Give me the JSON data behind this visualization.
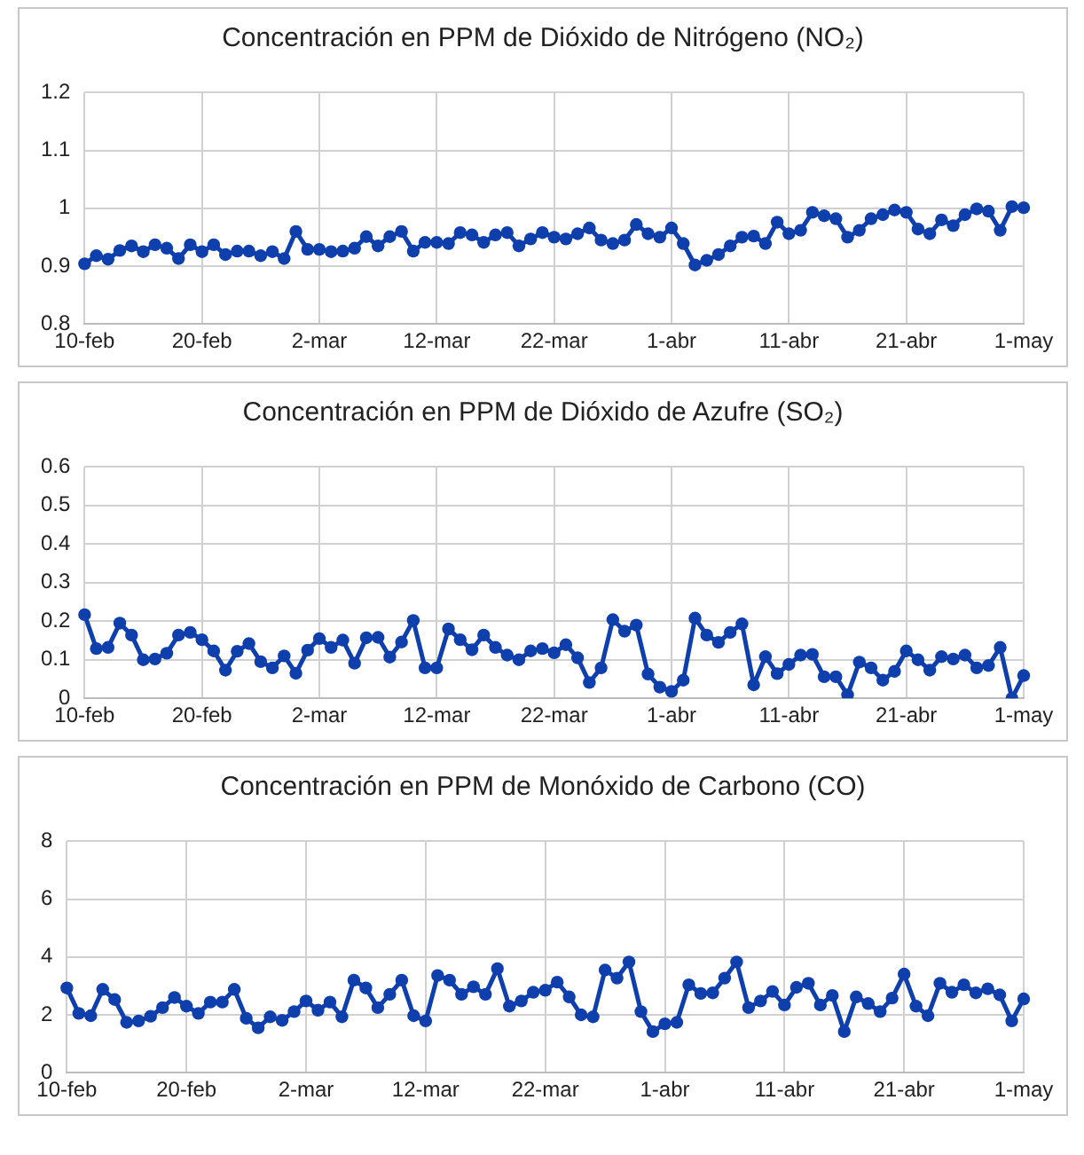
{
  "chart_data": [
    {
      "type": "line",
      "title": "Concentración en PPM de Dióxido de Nitrógeno (NO₂)",
      "marker": "circle",
      "grid": true,
      "color": "#0f3fad",
      "categories": [
        "10-feb",
        null,
        null,
        null,
        null,
        null,
        null,
        null,
        null,
        null,
        "20-feb",
        null,
        null,
        null,
        null,
        null,
        null,
        null,
        null,
        null,
        "2-mar",
        null,
        null,
        null,
        null,
        null,
        null,
        null,
        null,
        null,
        "12-mar",
        null,
        null,
        null,
        null,
        null,
        null,
        null,
        null,
        null,
        "22-mar",
        null,
        null,
        null,
        null,
        null,
        null,
        null,
        null,
        null,
        "1-abr",
        null,
        null,
        null,
        null,
        null,
        null,
        null,
        null,
        null,
        "11-abr",
        null,
        null,
        null,
        null,
        null,
        null,
        null,
        null,
        null,
        "21-abr",
        null,
        null,
        null,
        null,
        null,
        null,
        null,
        null,
        null,
        "1-may"
      ],
      "values": [
        0.904,
        0.918,
        0.912,
        0.927,
        0.935,
        0.925,
        0.937,
        0.931,
        0.913,
        0.937,
        0.925,
        0.937,
        0.92,
        0.926,
        0.926,
        0.918,
        0.925,
        0.913,
        0.96,
        0.929,
        0.929,
        0.925,
        0.926,
        0.931,
        0.951,
        0.935,
        0.951,
        0.96,
        0.926,
        0.941,
        0.941,
        0.939,
        0.958,
        0.954,
        0.941,
        0.954,
        0.958,
        0.935,
        0.947,
        0.958,
        0.95,
        0.947,
        0.956,
        0.966,
        0.945,
        0.939,
        0.945,
        0.972,
        0.956,
        0.95,
        0.966,
        0.939,
        0.902,
        0.91,
        0.92,
        0.935,
        0.95,
        0.952,
        0.939,
        0.976,
        0.956,
        0.962,
        0.993,
        0.987,
        0.982,
        0.95,
        0.962,
        0.982,
        0.989,
        0.997,
        0.993,
        0.964,
        0.956,
        0.98,
        0.97,
        0.989,
        0.999,
        0.995,
        0.962,
        1.003,
        1.001
      ],
      "ylim": [
        0.8,
        1.2
      ],
      "yticks": [
        0.8,
        0.9,
        1,
        1.1,
        1.2
      ]
    },
    {
      "type": "line",
      "title": "Concentración en PPM de Dióxido de Azufre (SO₂)",
      "marker": "circle",
      "grid": true,
      "color": "#0f3fad",
      "categories": [
        "10-feb",
        null,
        null,
        null,
        null,
        null,
        null,
        null,
        null,
        null,
        "20-feb",
        null,
        null,
        null,
        null,
        null,
        null,
        null,
        null,
        null,
        "2-mar",
        null,
        null,
        null,
        null,
        null,
        null,
        null,
        null,
        null,
        "12-mar",
        null,
        null,
        null,
        null,
        null,
        null,
        null,
        null,
        null,
        "22-mar",
        null,
        null,
        null,
        null,
        null,
        null,
        null,
        null,
        null,
        "1-abr",
        null,
        null,
        null,
        null,
        null,
        null,
        null,
        null,
        null,
        "11-abr",
        null,
        null,
        null,
        null,
        null,
        null,
        null,
        null,
        null,
        "21-abr",
        null,
        null,
        null,
        null,
        null,
        null,
        null,
        null,
        null,
        "1-may"
      ],
      "values": [
        0.217,
        0.129,
        0.132,
        0.195,
        0.164,
        0.1,
        0.102,
        0.117,
        0.164,
        0.171,
        0.152,
        0.123,
        0.073,
        0.122,
        0.142,
        0.095,
        0.079,
        0.11,
        0.065,
        0.125,
        0.155,
        0.132,
        0.151,
        0.091,
        0.157,
        0.158,
        0.107,
        0.146,
        0.202,
        0.079,
        0.079,
        0.18,
        0.152,
        0.126,
        0.164,
        0.132,
        0.112,
        0.1,
        0.123,
        0.129,
        0.118,
        0.139,
        0.105,
        0.041,
        0.079,
        0.204,
        0.174,
        0.19,
        0.063,
        0.029,
        0.018,
        0.047,
        0.208,
        0.164,
        0.145,
        0.171,
        0.193,
        0.035,
        0.108,
        0.064,
        0.088,
        0.112,
        0.114,
        0.056,
        0.056,
        0.009,
        0.094,
        0.079,
        0.047,
        0.07,
        0.123,
        0.1,
        0.073,
        0.108,
        0.102,
        0.112,
        0.079,
        0.085,
        0.132,
        0,
        0.059
      ],
      "ylim": [
        0,
        0.6
      ],
      "yticks": [
        0,
        0.1,
        0.2,
        0.3,
        0.4,
        0.5,
        0.6
      ]
    },
    {
      "type": "line",
      "title": "Concentración en PPM de Monóxido de Carbono (CO)",
      "marker": "circle",
      "grid": true,
      "color": "#0f3fad",
      "categories": [
        "10-feb",
        null,
        null,
        null,
        null,
        null,
        null,
        null,
        null,
        null,
        "20-feb",
        null,
        null,
        null,
        null,
        null,
        null,
        null,
        null,
        null,
        "2-mar",
        null,
        null,
        null,
        null,
        null,
        null,
        null,
        null,
        null,
        "12-mar",
        null,
        null,
        null,
        null,
        null,
        null,
        null,
        null,
        null,
        "22-mar",
        null,
        null,
        null,
        null,
        null,
        null,
        null,
        null,
        null,
        "1-abr",
        null,
        null,
        null,
        null,
        null,
        null,
        null,
        null,
        null,
        "11-abr",
        null,
        null,
        null,
        null,
        null,
        null,
        null,
        null,
        null,
        "21-abr",
        null,
        null,
        null,
        null,
        null,
        null,
        null,
        null,
        null,
        "1-may"
      ],
      "values": [
        2.93,
        2.05,
        1.97,
        2.88,
        2.53,
        1.74,
        1.79,
        1.95,
        2.25,
        2.6,
        2.3,
        2.05,
        2.44,
        2.44,
        2.88,
        1.88,
        1.55,
        1.93,
        1.81,
        2.11,
        2.48,
        2.16,
        2.44,
        1.93,
        3.2,
        2.93,
        2.25,
        2.71,
        3.2,
        1.97,
        1.79,
        3.36,
        3.2,
        2.71,
        2.97,
        2.71,
        3.6,
        2.3,
        2.48,
        2.78,
        2.85,
        3.13,
        2.62,
        2.0,
        1.93,
        3.55,
        3.27,
        3.83,
        2.11,
        1.42,
        1.69,
        1.74,
        3.04,
        2.74,
        2.76,
        3.27,
        3.83,
        2.25,
        2.48,
        2.81,
        2.34,
        2.95,
        3.09,
        2.34,
        2.67,
        1.42,
        2.62,
        2.39,
        2.11,
        2.58,
        3.41,
        2.3,
        1.97,
        3.09,
        2.78,
        3.04,
        2.76,
        2.9,
        2.69,
        1.79,
        2.55
      ],
      "ylim": [
        0,
        8
      ],
      "yticks": [
        0,
        2,
        4,
        6,
        8
      ]
    }
  ]
}
